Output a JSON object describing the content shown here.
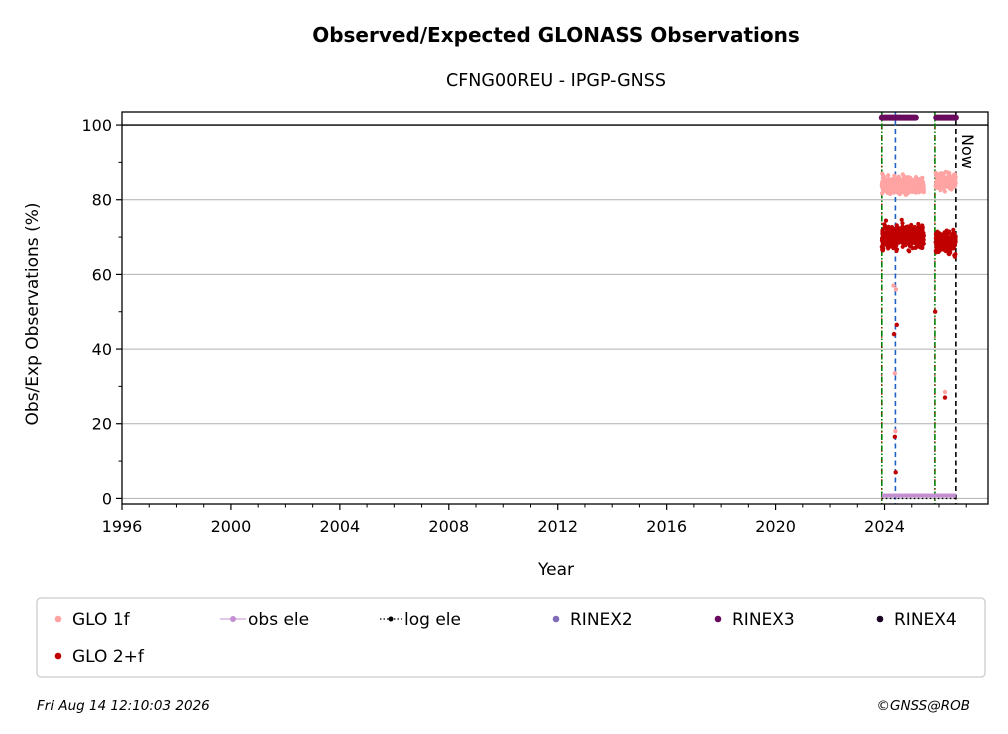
{
  "chart_data": {
    "type": "scatter",
    "title": "Observed/Expected GLONASS Observations",
    "subtitle": "CFNG00REU - IPGP-GNSS",
    "xlabel": "Year",
    "ylabel": "Obs/Exp Observations (%)",
    "xlim": [
      1996,
      2027.8
    ],
    "ylim": [
      -1.5,
      103.5
    ],
    "xticks": [
      1996,
      2000,
      2004,
      2008,
      2012,
      2016,
      2020,
      2024
    ],
    "xtick_labels": [
      "1996",
      "2000",
      "2004",
      "2008",
      "2012",
      "2016",
      "2020",
      "2024"
    ],
    "yticks": [
      0,
      20,
      40,
      60,
      80,
      100
    ],
    "ytick_labels": [
      "0",
      "20",
      "40",
      "60",
      "80",
      "100"
    ],
    "grid": "horizontal",
    "reference_line_y": 100,
    "now_label": "Now",
    "vlines": [
      {
        "x": 2023.9,
        "color": "#008000",
        "style": "dash-dot"
      },
      {
        "x": 2024.4,
        "color": "#1f5fbf",
        "style": "dashed"
      },
      {
        "x": 2025.85,
        "color": "#008000",
        "style": "dash-dot"
      },
      {
        "x": 2026.62,
        "color": "#000000",
        "style": "dashed",
        "label": "Now"
      }
    ],
    "series": [
      {
        "name": "GLO 1f",
        "color": "#ffa3a3",
        "segments": [
          [
            2023.9,
            2025.45,
            84,
            2.2
          ],
          [
            2025.88,
            2026.62,
            85,
            2
          ]
        ],
        "outliers": [
          [
            2024.33,
            57
          ],
          [
            2024.42,
            56
          ],
          [
            2024.38,
            33.5
          ],
          [
            2024.4,
            18
          ],
          [
            2026.22,
            28.5
          ]
        ]
      },
      {
        "name": "GLO 2+f",
        "color": "#c00000",
        "segments": [
          [
            2023.9,
            2025.45,
            70,
            3
          ],
          [
            2025.88,
            2026.62,
            68.5,
            3
          ]
        ],
        "outliers": [
          [
            2024.35,
            44
          ],
          [
            2024.45,
            46.5
          ],
          [
            2024.38,
            16.5
          ],
          [
            2024.41,
            7
          ],
          [
            2025.86,
            50
          ],
          [
            2026.22,
            27
          ]
        ]
      },
      {
        "name": "obs ele",
        "color": "#c38fd2",
        "range": [
          2023.9,
          2026.62
        ],
        "y": 0.5
      },
      {
        "name": "log ele",
        "color": "#000000",
        "range": [
          2023.9,
          2026.62
        ],
        "y": 0
      },
      {
        "name": "RINEX2",
        "color": "#7f6db8",
        "points": []
      },
      {
        "name": "RINEX3",
        "color": "#6a0a5e",
        "segments": [
          [
            2023.9,
            2025.15,
            102
          ],
          [
            2025.9,
            2026.62,
            102
          ]
        ]
      },
      {
        "name": "RINEX4",
        "color": "#1a0420",
        "points": []
      }
    ],
    "legend": {
      "placement": "bottom",
      "entries": [
        {
          "label": "GLO 1f",
          "color": "#ffa3a3",
          "marker": "dot"
        },
        {
          "label": "obs ele",
          "color": "#c38fd2",
          "marker": "line-dot"
        },
        {
          "label": "log ele",
          "color": "#000000",
          "marker": "dotted-line-dot"
        },
        {
          "label": "RINEX2",
          "color": "#7f6db8",
          "marker": "dot"
        },
        {
          "label": "RINEX3",
          "color": "#6a0a5e",
          "marker": "dot"
        },
        {
          "label": "RINEX4",
          "color": "#1a0420",
          "marker": "dot"
        },
        {
          "label": "GLO 2+f",
          "color": "#c00000",
          "marker": "dot"
        }
      ]
    }
  },
  "footer": {
    "timestamp": "Fri Aug 14 12:10:03 2026",
    "credit": "©GNSS@ROB"
  }
}
